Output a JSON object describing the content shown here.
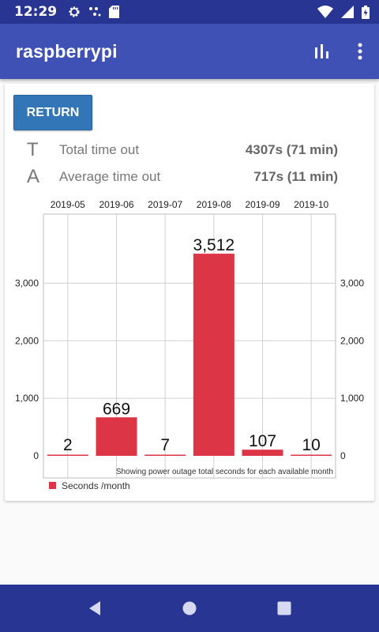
{
  "status_bar": {
    "time": "12:29",
    "icons": [
      "gear-icon",
      "dots-icon",
      "sd-card-icon",
      "wifi-icon",
      "signal-icon",
      "battery-icon"
    ]
  },
  "app_bar": {
    "title": "raspberrypi",
    "actions": [
      "bar-chart-icon",
      "overflow-menu-icon"
    ]
  },
  "card": {
    "return_label": "RETURN",
    "stats": [
      {
        "letter": "T",
        "label": "Total time out",
        "value": "4307s (71 min)"
      },
      {
        "letter": "A",
        "label": "Average time out",
        "value": "717s (11 min)"
      }
    ]
  },
  "chart_data": {
    "type": "bar",
    "categories": [
      "2019-05",
      "2019-06",
      "2019-07",
      "2019-08",
      "2019-09",
      "2019-10"
    ],
    "series": [
      {
        "name": "Seconds /month",
        "values": [
          2,
          669,
          7,
          3512,
          107,
          10
        ],
        "color": "#dc3545"
      }
    ],
    "value_labels": [
      "2",
      "669",
      "7",
      "3,512",
      "107",
      "10"
    ],
    "ylim": [
      0,
      4200
    ],
    "yticks": [
      0,
      1000,
      2000,
      3000
    ],
    "ytick_labels": [
      "0",
      "1,000",
      "2,000",
      "3,000"
    ],
    "description": "Showing power outage total seconds for each available month",
    "legend_position": "bottom-left",
    "grid": true
  },
  "colors": {
    "appbar": "#3f51b5",
    "statusbar": "#283593",
    "bar": "#dc3545",
    "button": "#3276b8"
  },
  "nav_bar": {
    "icons": [
      "back-icon",
      "home-icon",
      "recents-icon"
    ]
  }
}
